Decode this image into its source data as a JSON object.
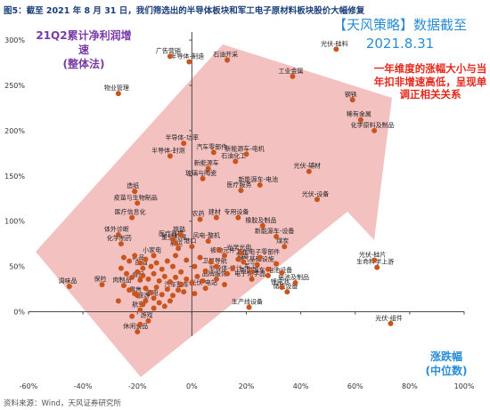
{
  "figure": {
    "title": "图5：截至 2021 年 8 月 31 日，我们筛选出的半导体板块和军工电子原材料板块股价大幅修复",
    "source": "资料来源：Wind，天风证券研究所",
    "strategy_title": "【天风策略】数据截至",
    "strategy_date": "2021.8.31",
    "ylabel_line1": "21Q2累计净利润增速",
    "ylabel_line2": "(整体法)",
    "xlabel_line1": "涨跌幅",
    "xlabel_line2": "(中位数)",
    "annotation": "一年维度的涨幅大小与当年扣非增速高低，呈现单调正相关关系"
  },
  "chart_data": {
    "type": "scatter",
    "xlim": [
      -0.6,
      1.0
    ],
    "ylim": [
      -0.25,
      3.05
    ],
    "x_ticks": [
      -0.6,
      -0.4,
      -0.2,
      0,
      0.2,
      0.4,
      0.6,
      0.8,
      1.0
    ],
    "x_tick_labels": [
      "-60%",
      "-40%",
      "-20%",
      "0%",
      "20%",
      "40%",
      "60%",
      "80%",
      "100%"
    ],
    "y_ticks": [
      0,
      0.5,
      1.0,
      1.5,
      2.0,
      2.5,
      3.0
    ],
    "y_tick_labels": [
      "0%",
      "50%",
      "100%",
      "150%",
      "200%",
      "250%",
      "300%"
    ],
    "grid": false,
    "marker_color": "#c9541c",
    "arrow_color": "#f2b6b6",
    "annotation_color": "#e4281c",
    "points": [
      {
        "label": "广告营销",
        "x": -0.08,
        "y": 2.82
      },
      {
        "label": "半导体-制造",
        "x": -0.01,
        "y": 2.76
      },
      {
        "label": "石油开采",
        "x": 0.13,
        "y": 2.78
      },
      {
        "label": "光伏-硅料",
        "x": 0.53,
        "y": 2.9
      },
      {
        "label": "工业金属",
        "x": 0.37,
        "y": 2.6
      },
      {
        "label": "物业管理",
        "x": -0.27,
        "y": 2.41
      },
      {
        "label": "钢铁",
        "x": 0.59,
        "y": 2.34
      },
      {
        "label": "稀有金属",
        "x": 0.62,
        "y": 2.12
      },
      {
        "label": "化学原料及制品",
        "x": 0.67,
        "y": 2.0
      },
      {
        "label": "半导体-功率",
        "x": -0.03,
        "y": 1.86
      },
      {
        "label": "半导体-封测",
        "x": -0.08,
        "y": 1.72
      },
      {
        "label": "汽车零部件",
        "x": 0.08,
        "y": 1.76
      },
      {
        "label": "新能源车-电机",
        "x": 0.2,
        "y": 1.74
      },
      {
        "label": "石油化工",
        "x": 0.16,
        "y": 1.66
      },
      {
        "label": "新能源车",
        "x": 0.06,
        "y": 1.58
      },
      {
        "label": "光伏-辅材",
        "x": 0.43,
        "y": 1.55
      },
      {
        "label": "玻璃与陶瓷",
        "x": 0.04,
        "y": 1.47
      },
      {
        "label": "新能源车-电池",
        "x": 0.25,
        "y": 1.4
      },
      {
        "label": "医疗服务",
        "x": 0.18,
        "y": 1.34
      },
      {
        "label": "造纸",
        "x": -0.21,
        "y": 1.33
      },
      {
        "label": "光伏-设备",
        "x": 0.46,
        "y": 1.24
      },
      {
        "label": "疫苗与生物制品",
        "x": -0.2,
        "y": 1.2
      },
      {
        "label": "医疗信息化",
        "x": -0.22,
        "y": 1.04
      },
      {
        "label": "农药",
        "x": 0.03,
        "y": 1.02
      },
      {
        "label": "建材",
        "x": 0.09,
        "y": 1.04
      },
      {
        "label": "专用设备",
        "x": 0.17,
        "y": 1.04
      },
      {
        "label": "橡胶及制品",
        "x": 0.26,
        "y": 0.95
      },
      {
        "label": "新能源车-设备",
        "x": 0.31,
        "y": 0.83
      },
      {
        "label": "体外诊断",
        "x": -0.27,
        "y": 0.85
      },
      {
        "label": "铁路",
        "x": -0.04,
        "y": 0.85
      },
      {
        "label": "风电-整机",
        "x": 0.06,
        "y": 0.78
      },
      {
        "label": "煤炭",
        "x": 0.34,
        "y": 0.72
      },
      {
        "label": "化学制药",
        "x": -0.26,
        "y": 0.75
      },
      {
        "label": "医疗器械",
        "x": -0.07,
        "y": 0.8
      },
      {
        "label": "重型机械",
        "x": -0.06,
        "y": 0.76
      },
      {
        "label": "航运",
        "x": -0.05,
        "y": 0.7
      },
      {
        "label": "港口",
        "x": 0.0,
        "y": 0.72
      },
      {
        "label": "小家电",
        "x": -0.14,
        "y": 0.62
      },
      {
        "label": "光伏-硅片",
        "x": 0.67,
        "y": 0.57
      },
      {
        "label": "被动元件",
        "x": 0.12,
        "y": 0.62
      },
      {
        "label": "光学光电",
        "x": 0.18,
        "y": 0.65
      },
      {
        "label": "其他电子零部件",
        "x": 0.25,
        "y": 0.6
      },
      {
        "label": "工控",
        "x": 0.19,
        "y": 0.55
      },
      {
        "label": "燃气基础设施",
        "x": 0.24,
        "y": 0.52
      },
      {
        "label": "乳品",
        "x": -0.19,
        "y": 0.54
      },
      {
        "label": "卫星导航",
        "x": 0.09,
        "y": 0.5
      },
      {
        "label": "生命科学上游",
        "x": 0.68,
        "y": 0.49
      },
      {
        "label": "白酒",
        "x": -0.18,
        "y": 0.48
      },
      {
        "label": "半导体-设计",
        "x": 0.13,
        "y": 0.42
      },
      {
        "label": "军工",
        "x": 0.22,
        "y": 0.44
      },
      {
        "label": "保险",
        "x": -0.33,
        "y": 0.3
      },
      {
        "label": "调味品",
        "x": -0.45,
        "y": 0.28
      },
      {
        "label": "肉制品",
        "x": -0.25,
        "y": 0.29
      },
      {
        "label": "食品",
        "x": -0.19,
        "y": 0.35
      },
      {
        "label": "品牌服饰",
        "x": 0.09,
        "y": 0.36
      },
      {
        "label": "新能源车-电池设备",
        "x": 0.28,
        "y": 0.4
      },
      {
        "label": "电子化学品",
        "x": 0.22,
        "y": 0.36
      },
      {
        "label": "锂电池",
        "x": 0.33,
        "y": 0.27
      },
      {
        "label": "电池及制品",
        "x": 0.38,
        "y": 0.32
      },
      {
        "label": "储能设备",
        "x": 0.35,
        "y": 0.22
      },
      {
        "label": "光伏-电站",
        "x": 0.05,
        "y": 0.26
      },
      {
        "label": "汽车整车",
        "x": -0.05,
        "y": 0.24
      },
      {
        "label": "零售",
        "x": -0.2,
        "y": 0.18
      },
      {
        "label": "家电",
        "x": -0.14,
        "y": 0.15
      },
      {
        "label": "旅游",
        "x": -0.17,
        "y": 0.12
      },
      {
        "label": "生产线设备",
        "x": 0.21,
        "y": 0.05
      },
      {
        "label": "航空",
        "x": -0.19,
        "y": 0.02
      },
      {
        "label": "游戏",
        "x": -0.16,
        "y": -0.1
      },
      {
        "label": "休闲食品",
        "x": -0.2,
        "y": -0.22
      },
      {
        "label": "光伏-组件",
        "x": 0.73,
        "y": -0.13
      },
      {
        "label": "",
        "x": -0.25,
        "y": 0.6
      },
      {
        "label": "",
        "x": -0.23,
        "y": 0.56
      },
      {
        "label": "",
        "x": -0.21,
        "y": 0.62
      },
      {
        "label": "",
        "x": -0.17,
        "y": 0.58
      },
      {
        "label": "",
        "x": -0.15,
        "y": 0.5
      },
      {
        "label": "",
        "x": -0.13,
        "y": 0.54
      },
      {
        "label": "",
        "x": -0.11,
        "y": 0.47
      },
      {
        "label": "",
        "x": -0.09,
        "y": 0.56
      },
      {
        "label": "",
        "x": -0.07,
        "y": 0.5
      },
      {
        "label": "",
        "x": -0.06,
        "y": 0.62
      },
      {
        "label": "",
        "x": -0.04,
        "y": 0.44
      },
      {
        "label": "",
        "x": -0.02,
        "y": 0.57
      },
      {
        "label": "",
        "x": 0.01,
        "y": 0.5
      },
      {
        "label": "",
        "x": 0.03,
        "y": 0.6
      },
      {
        "label": "",
        "x": 0.05,
        "y": 0.45
      },
      {
        "label": "",
        "x": 0.07,
        "y": 0.55
      },
      {
        "label": "",
        "x": 0.1,
        "y": 0.68
      },
      {
        "label": "",
        "x": -0.24,
        "y": 0.42
      },
      {
        "label": "",
        "x": -0.22,
        "y": 0.38
      },
      {
        "label": "",
        "x": -0.2,
        "y": 0.44
      },
      {
        "label": "",
        "x": -0.18,
        "y": 0.4
      },
      {
        "label": "",
        "x": -0.16,
        "y": 0.36
      },
      {
        "label": "",
        "x": -0.14,
        "y": 0.42
      },
      {
        "label": "",
        "x": -0.12,
        "y": 0.34
      },
      {
        "label": "",
        "x": -0.1,
        "y": 0.39
      },
      {
        "label": "",
        "x": -0.08,
        "y": 0.33
      },
      {
        "label": "",
        "x": -0.06,
        "y": 0.38
      },
      {
        "label": "",
        "x": -0.04,
        "y": 0.3
      },
      {
        "label": "",
        "x": -0.02,
        "y": 0.36
      },
      {
        "label": "",
        "x": 0.0,
        "y": 0.32
      },
      {
        "label": "",
        "x": 0.02,
        "y": 0.39
      },
      {
        "label": "",
        "x": 0.04,
        "y": 0.34
      },
      {
        "label": "",
        "x": -0.23,
        "y": 0.24
      },
      {
        "label": "",
        "x": -0.21,
        "y": 0.2
      },
      {
        "label": "",
        "x": -0.17,
        "y": 0.26
      },
      {
        "label": "",
        "x": -0.15,
        "y": 0.21
      },
      {
        "label": "",
        "x": -0.13,
        "y": 0.27
      },
      {
        "label": "",
        "x": -0.11,
        "y": 0.19
      },
      {
        "label": "",
        "x": -0.09,
        "y": 0.25
      },
      {
        "label": "",
        "x": -0.07,
        "y": 0.18
      },
      {
        "label": "",
        "x": -0.03,
        "y": 0.22
      },
      {
        "label": "",
        "x": 0.01,
        "y": 0.2
      },
      {
        "label": "",
        "x": -0.18,
        "y": 0.08
      },
      {
        "label": "",
        "x": -0.14,
        "y": 0.04
      },
      {
        "label": "",
        "x": -0.12,
        "y": 0.1
      },
      {
        "label": "",
        "x": -0.1,
        "y": 0.06
      },
      {
        "label": "",
        "x": -0.08,
        "y": 0.12
      },
      {
        "label": "",
        "x": -0.22,
        "y": -0.05
      },
      {
        "label": "",
        "x": -0.19,
        "y": -0.14
      },
      {
        "label": "",
        "x": -0.27,
        "y": 0.12
      },
      {
        "label": "",
        "x": -0.26,
        "y": 0.48
      },
      {
        "label": "",
        "x": 0.12,
        "y": 0.3
      },
      {
        "label": "",
        "x": 0.15,
        "y": 0.48
      },
      {
        "label": "",
        "x": 0.17,
        "y": 0.58
      },
      {
        "label": "",
        "x": 0.28,
        "y": 0.47
      },
      {
        "label": "",
        "x": 0.31,
        "y": 0.53
      },
      {
        "label": "",
        "x": 0.33,
        "y": 0.43
      }
    ]
  }
}
